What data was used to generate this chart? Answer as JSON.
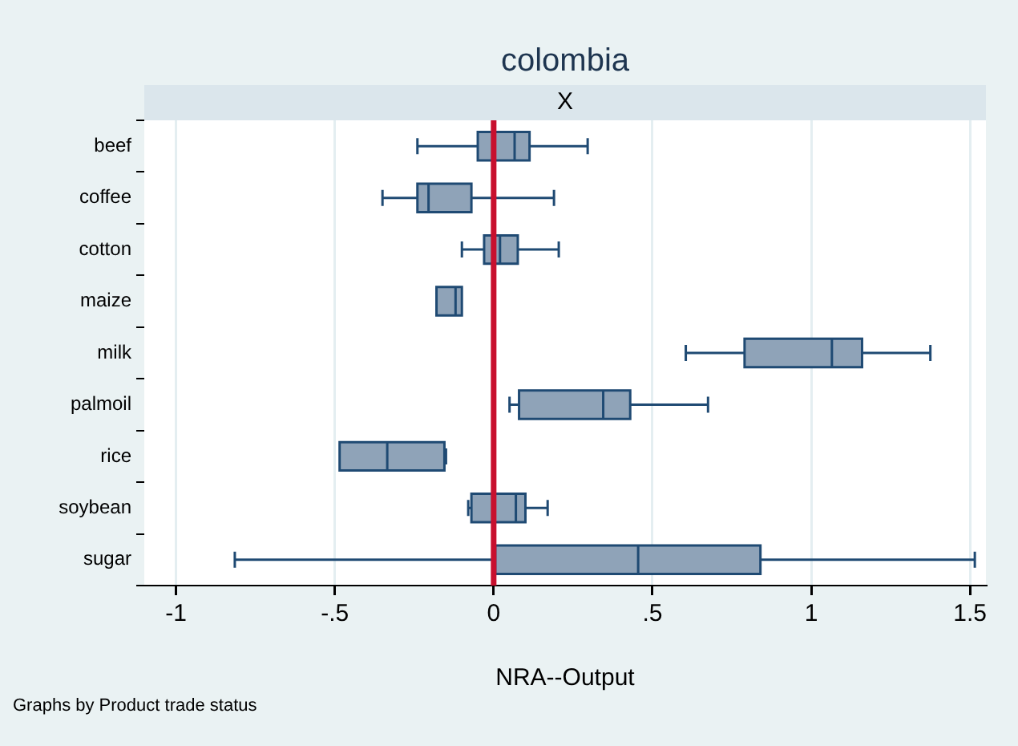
{
  "chart_data": {
    "type": "box",
    "orientation": "horizontal",
    "title": "colombia",
    "subtitle": "X",
    "xlabel": "NRA--Output",
    "annotations": [
      "Graphs by Product trade status"
    ],
    "categories": [
      "beef",
      "coffee",
      "cotton",
      "maize",
      "milk",
      "palmoil",
      "rice",
      "soybean",
      "sugar"
    ],
    "color": "#8fa3b8",
    "boxes": [
      {
        "low": -0.24,
        "q1": -0.05,
        "median": 0.066,
        "q3": 0.113,
        "high": 0.296
      },
      {
        "low": -0.35,
        "q1": -0.24,
        "median": -0.205,
        "q3": -0.07,
        "high": 0.19
      },
      {
        "low": -0.1,
        "q1": -0.03,
        "median": 0.02,
        "q3": 0.076,
        "high": 0.205
      },
      {
        "low": -0.18,
        "q1": -0.18,
        "median": -0.12,
        "q3": -0.1,
        "high": -0.1
      },
      {
        "low": 0.605,
        "q1": 0.79,
        "median": 1.065,
        "q3": 1.16,
        "high": 1.375
      },
      {
        "low": 0.05,
        "q1": 0.08,
        "median": 0.345,
        "q3": 0.43,
        "high": 0.675
      },
      {
        "low": -0.485,
        "q1": -0.485,
        "median": -0.335,
        "q3": -0.155,
        "high": -0.15
      },
      {
        "low": -0.08,
        "q1": -0.07,
        "median": 0.07,
        "q3": 0.1,
        "high": 0.17
      },
      {
        "low": -0.815,
        "q1": 0.005,
        "median": 0.455,
        "q3": 0.84,
        "high": 1.515
      }
    ],
    "xlim": [
      -1.1,
      1.55
    ],
    "xticks": [
      -1,
      {
        "value": -0.5,
        "label": "-.5"
      },
      0,
      {
        "value": 0.5,
        "label": ".5"
      },
      1,
      1.5
    ],
    "grid": "x",
    "ref_lines": [
      {
        "axis": "x",
        "value": 0,
        "color": "#c8102e"
      }
    ]
  }
}
